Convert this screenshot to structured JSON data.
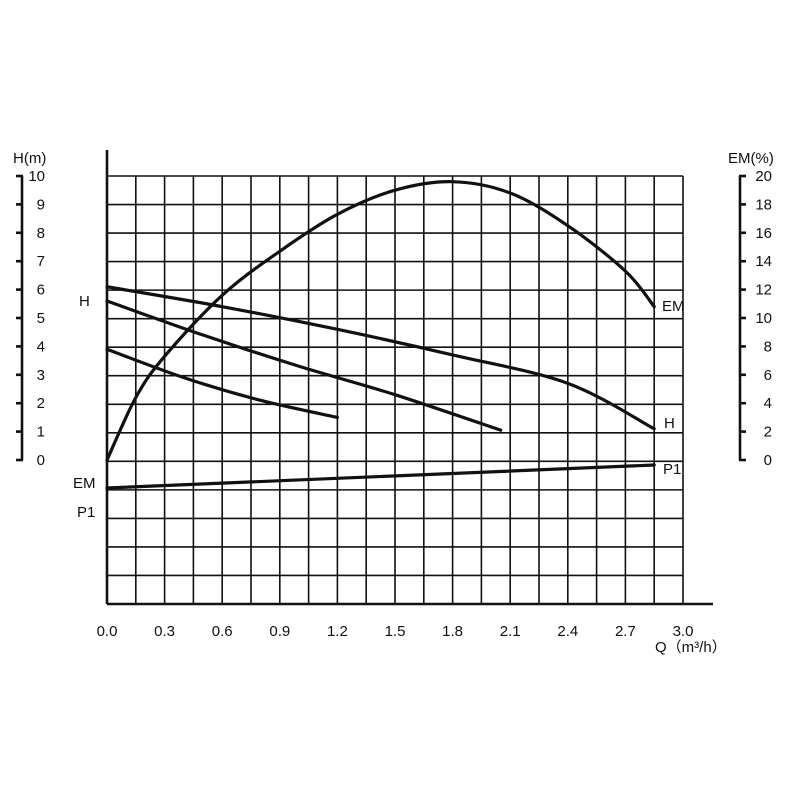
{
  "chart_data": {
    "type": "line",
    "x_axis": {
      "label": "Q（m³/h）",
      "range": [
        0.0,
        3.0
      ],
      "ticks": [
        "0.0",
        "0.3",
        "0.6",
        "0.9",
        "1.2",
        "1.5",
        "1.8",
        "2.1",
        "2.4",
        "2.7",
        "3.0"
      ]
    },
    "y_left_axis": {
      "label": "H(m)",
      "range": [
        0,
        10
      ],
      "ticks": [
        "0",
        "1",
        "2",
        "3",
        "4",
        "5",
        "6",
        "7",
        "8",
        "9",
        "10"
      ]
    },
    "y_right_axis": {
      "label": "EM(%)",
      "range": [
        0,
        20
      ],
      "ticks": [
        "0",
        "2",
        "4",
        "6",
        "8",
        "10",
        "12",
        "14",
        "16",
        "18",
        "20"
      ]
    },
    "grid": true,
    "series_labels": {
      "h_left": "H",
      "h_right": "H",
      "em_left": "EM",
      "em_right": "EM",
      "p1_left": "P1",
      "p1_right": "P1"
    },
    "series": [
      {
        "key": "h_high",
        "axis": "left",
        "x": [
          0.0,
          0.6,
          1.2,
          1.8,
          2.4,
          2.85
        ],
        "y": [
          6.1,
          5.4,
          4.6,
          3.7,
          2.7,
          1.1
        ]
      },
      {
        "key": "h_mid",
        "axis": "left",
        "x": [
          0.0,
          0.5,
          1.0,
          1.5,
          2.05
        ],
        "y": [
          5.6,
          4.4,
          3.3,
          2.3,
          1.05
        ]
      },
      {
        "key": "h_low",
        "axis": "left",
        "x": [
          0.0,
          0.4,
          0.8,
          1.2
        ],
        "y": [
          3.9,
          2.9,
          2.1,
          1.5
        ]
      },
      {
        "key": "em",
        "axis": "right",
        "x": [
          0.0,
          0.15,
          0.3,
          0.6,
          0.9,
          1.2,
          1.5,
          1.8,
          2.1,
          2.4,
          2.7,
          2.85
        ],
        "y": [
          0.0,
          4.4,
          7.3,
          11.6,
          14.7,
          17.3,
          19.0,
          19.6,
          18.8,
          16.5,
          13.3,
          10.8
        ]
      },
      {
        "key": "p1",
        "axis": "p1",
        "x": [
          0.0,
          2.85
        ],
        "y": [
          0.0,
          1.0
        ]
      }
    ]
  }
}
